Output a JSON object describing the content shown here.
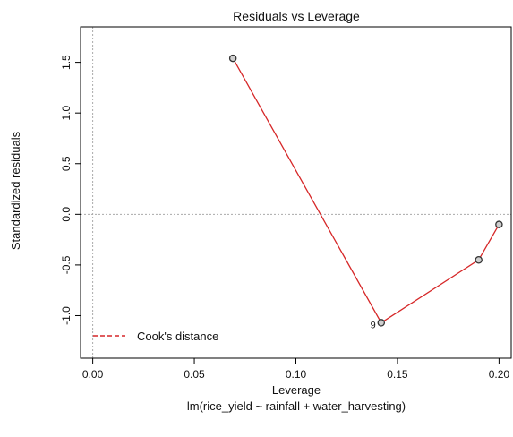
{
  "chart_data": {
    "type": "scatter",
    "title": "Residuals vs Leverage",
    "xlabel": "Leverage",
    "subtitle": "lm(rice_yield ~ rainfall + water_harvesting)",
    "ylabel": "Standardized residuals",
    "xlim": [
      -0.006,
      0.206
    ],
    "ylim": [
      -1.42,
      1.85
    ],
    "x_ticks": [
      0.0,
      0.05,
      0.1,
      0.15,
      0.2
    ],
    "x_tick_labels": [
      "0.00",
      "0.05",
      "0.10",
      "0.15",
      "0.20"
    ],
    "y_ticks": [
      -1.0,
      -0.5,
      0.0,
      0.5,
      1.0,
      1.5
    ],
    "y_tick_labels": [
      "-1.0",
      "-0.5",
      "0.0",
      "0.5",
      "1.0",
      "1.5"
    ],
    "points": [
      {
        "x": 0.069,
        "y": 1.54,
        "label": ""
      },
      {
        "x": 0.142,
        "y": -1.07,
        "label": "9"
      },
      {
        "x": 0.19,
        "y": -0.45,
        "label": ""
      },
      {
        "x": 0.2,
        "y": -0.1,
        "label": ""
      }
    ],
    "smooth_line": [
      {
        "x": 0.069,
        "y": 1.54
      },
      {
        "x": 0.142,
        "y": -1.07
      },
      {
        "x": 0.19,
        "y": -0.45
      },
      {
        "x": 0.2,
        "y": -0.1
      }
    ],
    "legend": {
      "position": "bottom-left",
      "entries": [
        {
          "label": "Cook's distance",
          "style": "dashed",
          "color": "#d62728"
        }
      ]
    },
    "reference_lines": {
      "horizontal": 0.0,
      "vertical": 0.0,
      "style": "dotted",
      "color": "#aaaaaa"
    },
    "colors": {
      "smooth": "#d62728",
      "points": "#333333",
      "frame": "#000000"
    }
  }
}
